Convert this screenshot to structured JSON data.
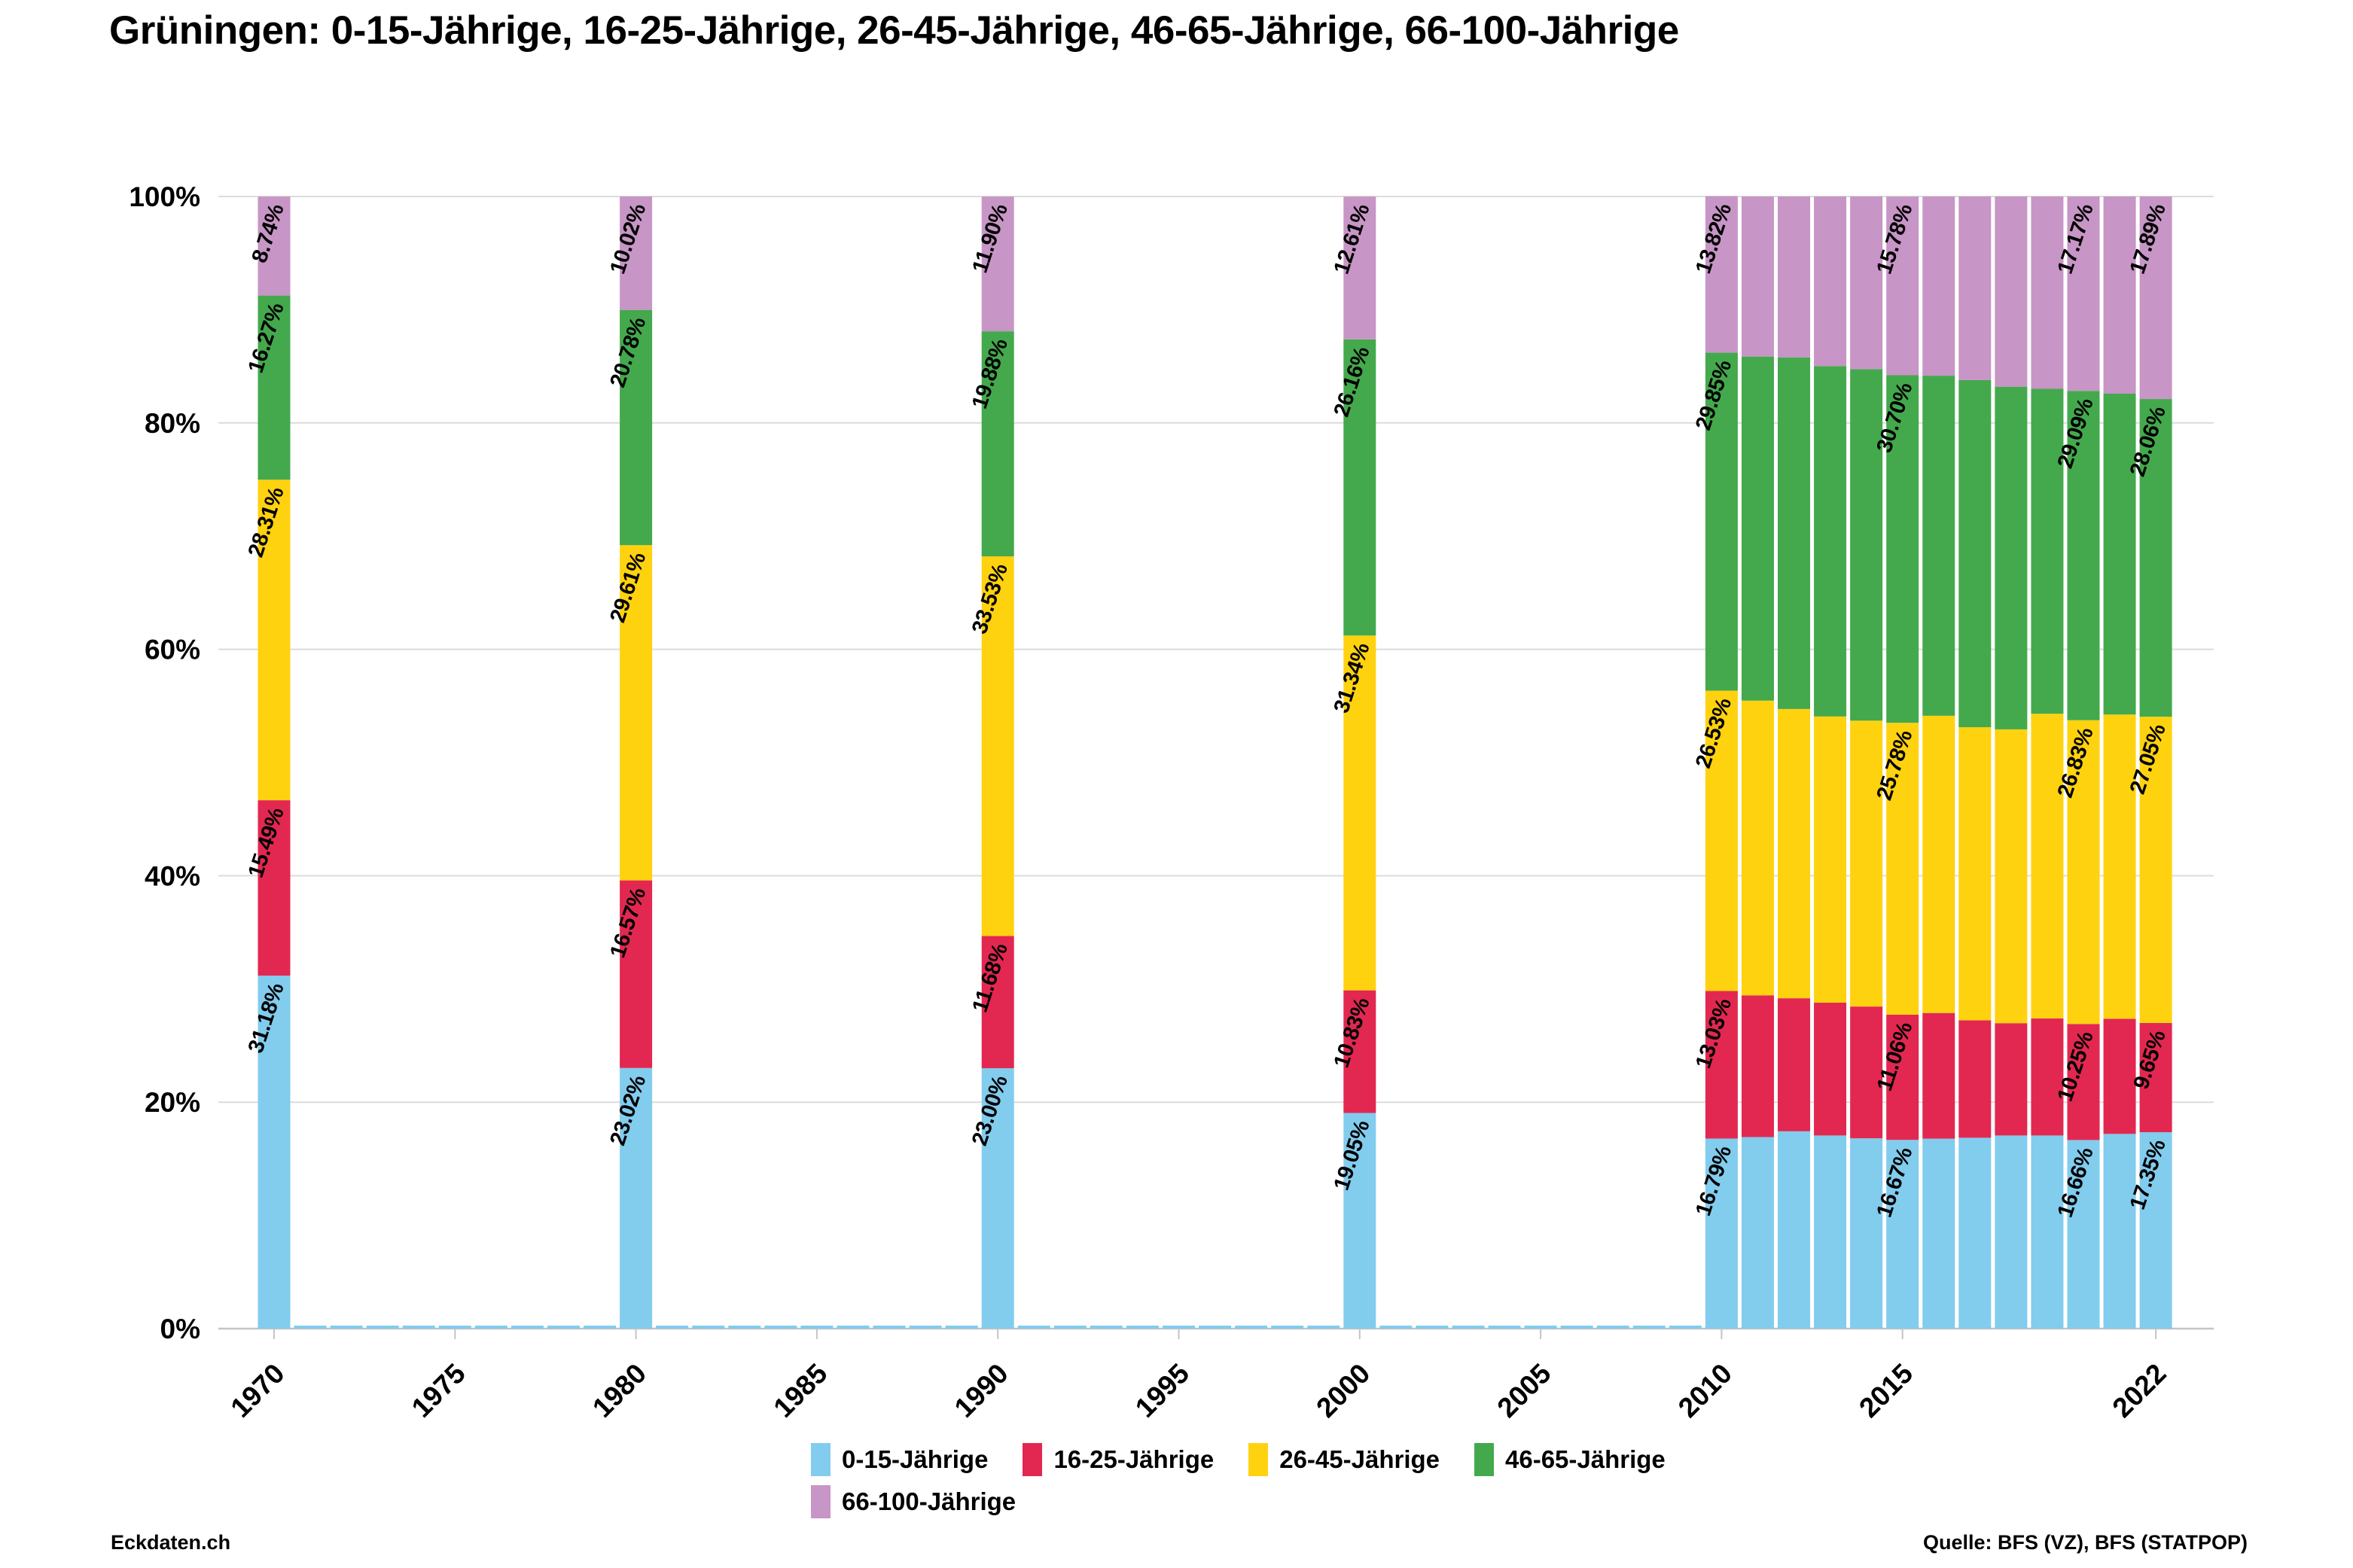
{
  "title": "Grüningen: 0-15-Jährige, 16-25-Jährige, 26-45-Jährige, 46-65-Jährige, 66-100-Jährige",
  "footer": {
    "left": "Eckdaten.ch",
    "right": "Quelle: BFS (VZ), BFS (STATPOP)"
  },
  "chart_data": {
    "type": "bar",
    "stacked": true,
    "stacking": "percent",
    "unit": "%",
    "grid": "horizontal",
    "legend_position": "bottom",
    "ylim": [
      0,
      100
    ],
    "y_tick_labels": [
      "0%",
      "20%",
      "40%",
      "60%",
      "80%",
      "100%"
    ],
    "x_tick_labels": [
      "1970",
      "1975",
      "1980",
      "1985",
      "1990",
      "1995",
      "2000",
      "2005",
      "2010",
      "2015",
      "2022"
    ],
    "x_range": [
      1970,
      2022
    ],
    "years": [
      1970,
      1980,
      1990,
      2000,
      2010,
      2011,
      2012,
      2013,
      2014,
      2015,
      2016,
      2017,
      2018,
      2019,
      2020,
      2021,
      2022
    ],
    "value_labels_on_years": [
      1970,
      1980,
      1990,
      2000,
      2010,
      2015,
      2020,
      2022
    ],
    "axis_color": "#c4c4c4",
    "gridline_color": "#dcdcdc",
    "series": [
      {
        "name": "0-15-Jährige",
        "color": "#82CCEE",
        "values": [
          31.18,
          23.02,
          23.0,
          19.05,
          16.79,
          16.92,
          17.43,
          17.06,
          16.81,
          16.67,
          16.78,
          16.86,
          17.06,
          17.06,
          16.66,
          17.2,
          17.35
        ]
      },
      {
        "name": "16-25-Jährige",
        "color": "#E22850",
        "values": [
          15.49,
          16.57,
          11.68,
          10.83,
          13.03,
          12.52,
          11.75,
          11.73,
          11.64,
          11.06,
          11.1,
          10.37,
          9.92,
          10.34,
          10.25,
          10.17,
          9.65
        ]
      },
      {
        "name": "26-45-Jährige",
        "color": "#FFD20F",
        "values": [
          28.31,
          29.61,
          33.53,
          31.34,
          26.53,
          26.03,
          25.55,
          25.28,
          25.25,
          25.78,
          26.25,
          25.89,
          25.95,
          26.91,
          26.83,
          26.87,
          27.05
        ]
      },
      {
        "name": "46-65-Jährige",
        "color": "#44A94C",
        "values": [
          16.27,
          20.78,
          19.88,
          26.16,
          29.85,
          30.39,
          31.06,
          30.95,
          31.05,
          30.7,
          30.04,
          30.66,
          30.27,
          28.7,
          29.09,
          28.34,
          28.06
        ]
      },
      {
        "name": "66-100-Jährige",
        "color": "#C795C6",
        "values": [
          8.74,
          10.02,
          11.9,
          12.61,
          13.82,
          14.14,
          14.21,
          14.98,
          15.25,
          15.78,
          15.83,
          16.22,
          16.8,
          16.99,
          17.17,
          17.42,
          17.89
        ]
      }
    ]
  }
}
